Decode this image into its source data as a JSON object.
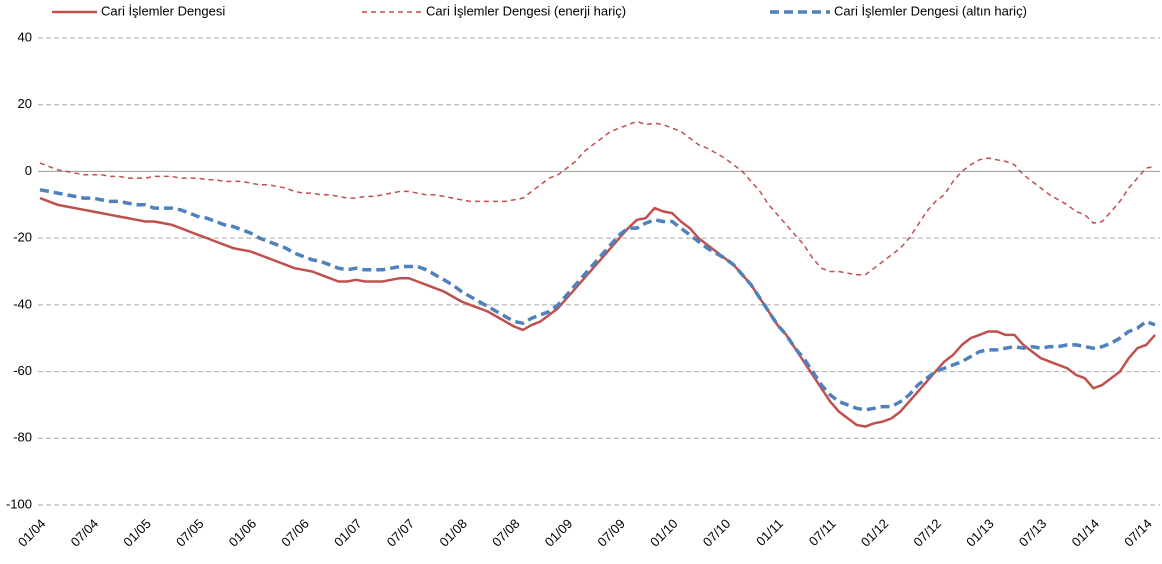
{
  "chart_data": {
    "type": "line",
    "categories": [
      "01/04",
      null,
      null,
      null,
      null,
      null,
      "07/04",
      null,
      null,
      null,
      null,
      null,
      "01/05",
      null,
      null,
      null,
      null,
      null,
      "07/05",
      null,
      null,
      null,
      null,
      null,
      "01/06",
      null,
      null,
      null,
      null,
      null,
      "07/06",
      null,
      null,
      null,
      null,
      null,
      "01/07",
      null,
      null,
      null,
      null,
      null,
      "07/07",
      null,
      null,
      null,
      null,
      null,
      "01/08",
      null,
      null,
      null,
      null,
      null,
      "07/08",
      null,
      null,
      null,
      null,
      null,
      "01/09",
      null,
      null,
      null,
      null,
      null,
      "07/09",
      null,
      null,
      null,
      null,
      null,
      "01/10",
      null,
      null,
      null,
      null,
      null,
      "07/10",
      null,
      null,
      null,
      null,
      null,
      "01/11",
      null,
      null,
      null,
      null,
      null,
      "07/11",
      null,
      null,
      null,
      null,
      null,
      "01/12",
      null,
      null,
      null,
      null,
      null,
      "07/12",
      null,
      null,
      null,
      null,
      null,
      "01/13",
      null,
      null,
      null,
      null,
      null,
      "07/13",
      null,
      null,
      null,
      null,
      null,
      "01/14",
      null,
      null,
      null,
      null,
      null,
      "07/14",
      null
    ],
    "series": [
      {
        "name": "Cari İşlemler Dengesi",
        "color": "#c0504d",
        "dash": "none",
        "width": 2.5,
        "values": [
          -8,
          -9,
          -10,
          -10.5,
          -11,
          -11.5,
          -12,
          -12.5,
          -13,
          -13.5,
          -14,
          -14.5,
          -15,
          -15,
          -15.5,
          -16,
          -17,
          -18,
          -19,
          -20,
          -21,
          -22,
          -23,
          -23.5,
          -24,
          -25,
          -26,
          -27,
          -28,
          -29,
          -29.5,
          -30,
          -31,
          -32,
          -33,
          -33,
          -32.5,
          -33,
          -33,
          -33,
          -32.5,
          -32,
          -32,
          -33,
          -34,
          -35,
          -36,
          -37.5,
          -39,
          -40,
          -41,
          -42,
          -43.5,
          -45,
          -46.5,
          -47.5,
          -46,
          -45,
          -43,
          -41,
          -38,
          -35,
          -32,
          -29,
          -26,
          -23,
          -20,
          -17,
          -14.5,
          -14,
          -11,
          -12,
          -12.5,
          -15,
          -17,
          -20,
          -22,
          -24,
          -26,
          -28,
          -31,
          -34,
          -38,
          -42,
          -46,
          -49,
          -53,
          -57,
          -61,
          -65,
          -69,
          -72,
          -74,
          -76,
          -76.5,
          -75.5,
          -75,
          -74,
          -72,
          -69,
          -66,
          -63,
          -60,
          -57,
          -55,
          -52,
          -50,
          -49,
          -48,
          -48,
          -49,
          -49,
          -52,
          -54,
          -56,
          -57,
          -58,
          -59,
          -61,
          -62,
          -65,
          -64,
          -62,
          -60,
          -56,
          -53,
          -52,
          -49
        ]
      },
      {
        "name": "Cari İşlemler Dengesi (enerji hariç)",
        "color": "#c0504d",
        "dash": "5 4",
        "width": 1.5,
        "values": [
          2.5,
          1.5,
          0.5,
          0,
          -0.5,
          -1,
          -1,
          -1,
          -1.5,
          -1.5,
          -2,
          -2,
          -2,
          -1.5,
          -1.5,
          -1.5,
          -2,
          -2,
          -2,
          -2.5,
          -2.5,
          -3,
          -3,
          -3,
          -3.5,
          -4,
          -4,
          -4.5,
          -5,
          -6,
          -6.5,
          -6.5,
          -7,
          -7,
          -7.5,
          -8,
          -8,
          -7.5,
          -7.5,
          -7,
          -6.5,
          -6,
          -6,
          -6.5,
          -7,
          -7,
          -7.5,
          -8,
          -8.5,
          -9,
          -9,
          -9,
          -9,
          -9,
          -8.5,
          -8,
          -6,
          -4,
          -2,
          -1,
          1,
          3,
          6,
          8,
          10,
          12,
          13,
          14,
          15,
          14,
          14.5,
          14,
          13,
          12,
          10,
          8,
          7,
          5.5,
          4,
          2,
          0,
          -3,
          -6,
          -10,
          -13,
          -16,
          -19,
          -22,
          -26,
          -29,
          -30,
          -30,
          -30.5,
          -31,
          -31,
          -29,
          -27,
          -25,
          -23,
          -20,
          -16,
          -12,
          -9,
          -7,
          -3,
          0,
          2,
          3.5,
          4,
          3.5,
          3,
          2,
          -1,
          -3,
          -5,
          -7,
          -8.5,
          -10,
          -12,
          -13,
          -15.5,
          -15,
          -12,
          -9,
          -5,
          -2,
          1,
          1.5
        ]
      },
      {
        "name": "Cari İşlemler Dengesi (altın hariç)",
        "color": "#4f81bd",
        "dash": "9 5",
        "width": 3.5,
        "values": [
          -5.5,
          -6,
          -6.5,
          -7,
          -7.5,
          -8,
          -8,
          -8.5,
          -9,
          -9,
          -9.5,
          -10,
          -10,
          -11,
          -11,
          -11,
          -11.5,
          -12.5,
          -13.5,
          -14,
          -15,
          -16,
          -16.5,
          -17.5,
          -18.5,
          -20,
          -21,
          -22,
          -23,
          -24.5,
          -25.5,
          -26.5,
          -27,
          -28,
          -29,
          -29.5,
          -29,
          -29.5,
          -29.5,
          -29.5,
          -29,
          -28.5,
          -28.5,
          -28.5,
          -29.5,
          -31,
          -32.5,
          -34,
          -36,
          -37.5,
          -39,
          -40.5,
          -42,
          -43.5,
          -45,
          -45.5,
          -44,
          -43,
          -42,
          -40,
          -37,
          -34,
          -31,
          -28,
          -25,
          -22,
          -19,
          -17,
          -17,
          -15.5,
          -14.5,
          -15,
          -15,
          -17,
          -19,
          -21,
          -23,
          -24.5,
          -26,
          -28,
          -31,
          -34,
          -38,
          -42,
          -46,
          -49,
          -53,
          -56,
          -60,
          -64,
          -67,
          -69,
          -70,
          -71,
          -71.5,
          -71,
          -70.5,
          -70.5,
          -69,
          -67,
          -64,
          -62,
          -60,
          -59,
          -58,
          -57,
          -55.5,
          -54,
          -53.5,
          -53.5,
          -53,
          -52.5,
          -53,
          -52.5,
          -53,
          -52.5,
          -52.5,
          -52,
          -52,
          -52.5,
          -53,
          -52.5,
          -51.5,
          -50,
          -48,
          -47,
          -45,
          -46
        ]
      }
    ],
    "ylim": [
      -100,
      40
    ],
    "yticks": [
      -100,
      -80,
      -60,
      -40,
      -20,
      0,
      20,
      40
    ],
    "grid": true
  }
}
